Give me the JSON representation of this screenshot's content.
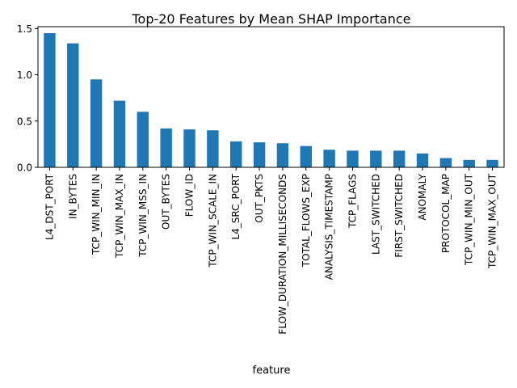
{
  "chart_data": {
    "type": "bar",
    "title": "Top-20 Features by Mean SHAP Importance",
    "xlabel": "feature",
    "ylabel": "",
    "ylim": [
      0,
      1.52
    ],
    "yticks": [
      "0.0",
      "0.5",
      "1.0",
      "1.5"
    ],
    "grid": false,
    "bar_color": "#1f77b4",
    "categories": [
      "L4_DST_PORT",
      "IN_BYTES",
      "TCP_WIN_MIN_IN",
      "TCP_WIN_MAX_IN",
      "TCP_WIN_MSS_IN",
      "OUT_BYTES",
      "FLOW_ID",
      "TCP_WIN_SCALE_IN",
      "L4_SRC_PORT",
      "OUT_PKTS",
      "FLOW_DURATION_MILLISECONDS",
      "TOTAL_FLOWS_EXP",
      "ANALYSIS_TIMESTAMP",
      "TCP_FLAGS",
      "LAST_SWITCHED",
      "FIRST_SWITCHED",
      "ANOMALY",
      "PROTOCOL_MAP",
      "TCP_WIN_MIN_OUT",
      "TCP_WIN_MAX_OUT"
    ],
    "values": [
      1.45,
      1.34,
      0.95,
      0.72,
      0.6,
      0.42,
      0.41,
      0.4,
      0.28,
      0.27,
      0.26,
      0.23,
      0.19,
      0.18,
      0.18,
      0.18,
      0.15,
      0.1,
      0.08,
      0.08
    ]
  }
}
